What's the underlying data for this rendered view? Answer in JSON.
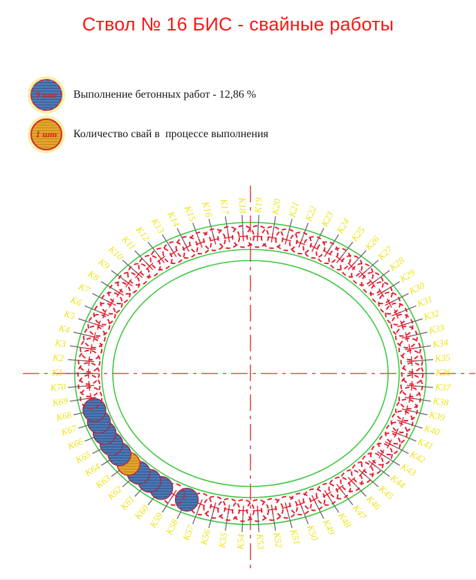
{
  "title": "Ствол № 16 БИС - свайные работы",
  "legend": [
    {
      "count_label": "9 шт",
      "text": "Выполнение бетонных работ - 12,86 %",
      "type": "completed"
    },
    {
      "count_label": "1 шт",
      "text": "Количество свай в  процессе выполнения",
      "type": "in_progress"
    }
  ],
  "diagram": {
    "pile_labels": [
      "K1",
      "K2",
      "K3",
      "K4",
      "K5",
      "K6",
      "K7",
      "K8",
      "K9",
      "K10",
      "K11",
      "K12",
      "K13",
      "K14",
      "K15",
      "K16",
      "K17",
      "K18",
      "K19",
      "K20",
      "K21",
      "K22",
      "K23",
      "K24",
      "K25",
      "K26",
      "K27",
      "K28",
      "K29",
      "K30",
      "K31",
      "K32",
      "K33",
      "K34",
      "K35",
      "K36",
      "K37",
      "K38",
      "K39",
      "K40",
      "K41",
      "K42",
      "K43",
      "K44",
      "K45",
      "K46",
      "K47",
      "K48",
      "K49",
      "K50",
      "K51",
      "K52",
      "K53",
      "K54",
      "K55",
      "K56",
      "K57",
      "K58",
      "K59",
      "K60",
      "K61",
      "K62",
      "K63",
      "K64",
      "K65",
      "K66",
      "K67",
      "K68",
      "K69",
      "K70"
    ],
    "completed_piles": [
      "K58",
      "K60",
      "K61",
      "K62",
      "K64",
      "K65",
      "K66",
      "K67",
      "K68"
    ],
    "in_progress_piles": [
      "K63"
    ],
    "colors": {
      "title_red": "#fd1414",
      "pile_outline_red": "#e01f2f",
      "centerline_red": "#e14b4b",
      "wall_green": "#3dc83d",
      "label_yellow": "#ece419",
      "leader_gray": "#6e6e6e",
      "completed_fill": "#4d7ab5",
      "completed_hatch": "#31598f",
      "completed_border": "#a12d50",
      "progress_fill": "#e2a62c",
      "progress_hatch": "#c4881c",
      "progress_border": "#d42525",
      "halo_yellow": "#faf0a6"
    }
  }
}
